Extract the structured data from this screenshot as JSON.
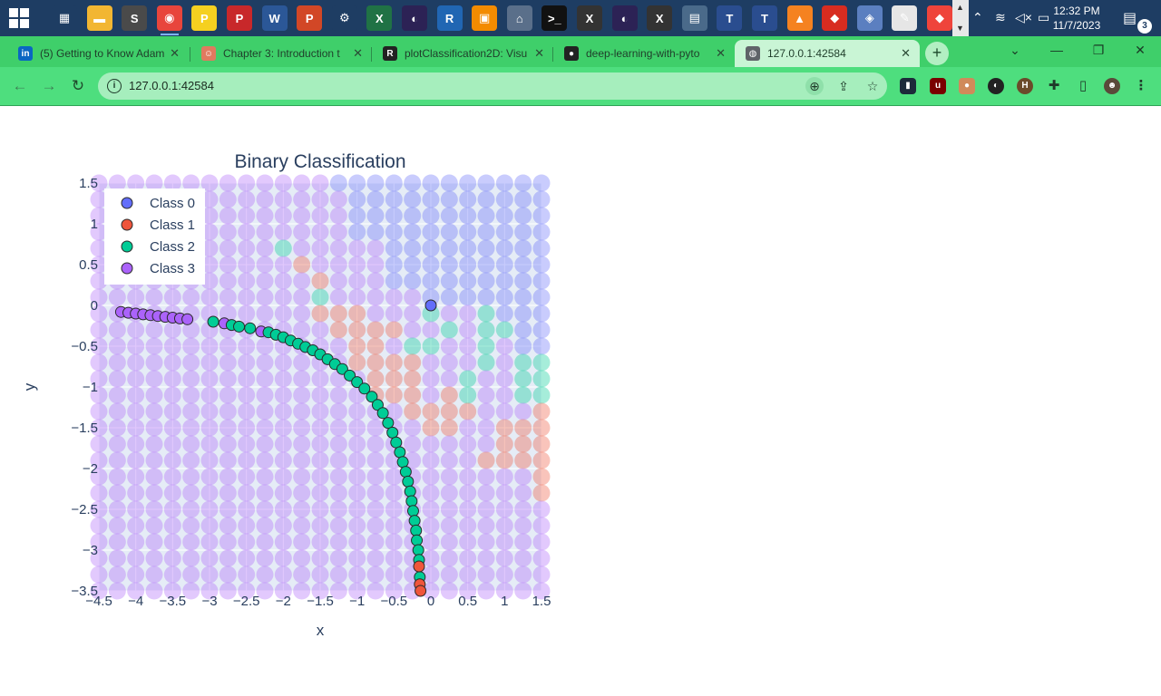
{
  "taskbar": {
    "icons": [
      {
        "name": "task-view-icon",
        "color": "#1e3d63",
        "glyph": "▦"
      },
      {
        "name": "file-explorer-icon",
        "color": "#f2b632",
        "glyph": "▬"
      },
      {
        "name": "sublime-text-icon",
        "color": "#4a4a4a",
        "glyph": "S"
      },
      {
        "name": "chrome-icon",
        "color": "#e8453c",
        "glyph": "◉"
      },
      {
        "name": "pdf-reader-icon",
        "color": "#f5d020",
        "glyph": "P"
      },
      {
        "name": "pdf-editor-icon",
        "color": "#c8282a",
        "glyph": "P"
      },
      {
        "name": "word-icon",
        "color": "#2b5797",
        "glyph": "W"
      },
      {
        "name": "powerpoint-icon",
        "color": "#d24726",
        "glyph": "P"
      },
      {
        "name": "settings-gear-icon",
        "color": "#1e3d63",
        "glyph": "⚙"
      },
      {
        "name": "excel-icon",
        "color": "#207245",
        "glyph": "X"
      },
      {
        "name": "eclipse-icon",
        "color": "#2c2255",
        "glyph": "◐"
      },
      {
        "name": "r-project-icon",
        "color": "#2166b3",
        "glyph": "R"
      },
      {
        "name": "vmware-icon",
        "color": "#f38b00",
        "glyph": "▣"
      },
      {
        "name": "network-tool-icon",
        "color": "#5a6f8a",
        "glyph": "⌂"
      },
      {
        "name": "terminal-icon",
        "color": "#111111",
        "glyph": ">_"
      },
      {
        "name": "xming-icon",
        "color": "#333333",
        "glyph": "X"
      },
      {
        "name": "eclipse-2-icon",
        "color": "#2c2255",
        "glyph": "◐"
      },
      {
        "name": "xming-2-icon",
        "color": "#333333",
        "glyph": "X"
      },
      {
        "name": "remote-desktop-icon",
        "color": "#4a6a8a",
        "glyph": "▤"
      },
      {
        "name": "texstudio-icon",
        "color": "#2a4d8f",
        "glyph": "T"
      },
      {
        "name": "texstudio-2-icon",
        "color": "#2a4d8f",
        "glyph": "T"
      },
      {
        "name": "vlc-icon",
        "color": "#f58220",
        "glyph": "▲"
      },
      {
        "name": "redis-icon",
        "color": "#d82c20",
        "glyph": "◆"
      },
      {
        "name": "shield-app-icon",
        "color": "#5b7fc0",
        "glyph": "◈"
      },
      {
        "name": "paint-icon",
        "color": "#e6e6e6",
        "glyph": "✎"
      },
      {
        "name": "anydesk-icon",
        "color": "#ef443b",
        "glyph": "◆"
      }
    ],
    "clock_time": "12:32 PM",
    "clock_date": "11/7/2023",
    "notification_count": "3"
  },
  "browser": {
    "tabs": [
      {
        "title": "(5) Getting to Know Adam",
        "favicon": "in",
        "favicon_color": "#0a66c2"
      },
      {
        "title": "Chapter 3: Introduction t",
        "favicon": "☺",
        "favicon_color": "#e07a5f"
      },
      {
        "title": "plotClassification2D: Visu",
        "favicon": "R",
        "favicon_color": "#222222"
      },
      {
        "title": "deep-learning-with-pyto",
        "favicon": "●",
        "favicon_color": "#222222"
      },
      {
        "title": "127.0.0.1:42584",
        "favicon": "◍",
        "favicon_color": "#5f6368"
      }
    ],
    "url": "127.0.0.1:42584"
  },
  "chart_data": {
    "type": "scatter",
    "title": "Binary Classification",
    "xlabel": "x",
    "ylabel": "y",
    "xlim": [
      -4.5,
      1.5
    ],
    "ylim": [
      -3.5,
      1.5
    ],
    "x_ticks": [
      "−4.5",
      "−4",
      "−3.5",
      "−3",
      "−2.5",
      "−2",
      "−1.5",
      "−1",
      "−0.5",
      "0",
      "0.5",
      "1",
      "1.5"
    ],
    "y_ticks": [
      "1.5",
      "1",
      "0.5",
      "0",
      "−0.5",
      "−1",
      "−1.5",
      "−2",
      "−2.5",
      "−3",
      "−3.5"
    ],
    "legend_position": "top-left",
    "classes": [
      {
        "name": "Class 0",
        "color": "#636efa"
      },
      {
        "name": "Class 1",
        "color": "#ef553b"
      },
      {
        "name": "Class 2",
        "color": "#00cc96"
      },
      {
        "name": "Class 3",
        "color": "#ab63fa"
      }
    ],
    "grid": {
      "x_start": -4.5,
      "x_step": 0.25,
      "x_count": 25,
      "y_start": 1.5,
      "y_step": -0.2,
      "y_count": 26,
      "rows": [
        "3333333333333000000000000",
        "3333333333333300000000000",
        "3333333333333300000000000",
        "3333333333333300000000000",
        "3333333333233333000000000",
        "3333333333313333000000000",
        "3333333333331333000000000",
        "3333333333332333330000000",
        "3333333333331113332332000",
        "3333333333333111133232200",
        "3333333333333311322332300",
        "3333333333333311113332322",
        "3333333333333331113323322",
        "3333333333333331113123322",
        "3333333333333333311113331",
        "3333333333333333331133111",
        "3333333333333333333333111",
        "3333333333333333333331111",
        "3333333333333333333333331",
        "3333333333333333333333331",
        "3333333333333333333333333",
        "3333333333333333333333333",
        "3333333333333333333333333",
        "3333333333333333333333333",
        "3333333333333333333333333",
        "3333333333333333333333333"
      ]
    },
    "series": [
      {
        "name": "Class 0",
        "points": [
          [
            0.0,
            0.0
          ]
        ]
      },
      {
        "name": "Class 3",
        "points": [
          [
            -4.2,
            -0.08
          ],
          [
            -4.1,
            -0.09
          ],
          [
            -4.0,
            -0.1
          ],
          [
            -3.9,
            -0.11
          ],
          [
            -3.8,
            -0.12
          ],
          [
            -3.7,
            -0.13
          ],
          [
            -3.6,
            -0.14
          ],
          [
            -3.5,
            -0.15
          ],
          [
            -3.4,
            -0.16
          ],
          [
            -3.3,
            -0.17
          ],
          [
            -2.8,
            -0.22
          ],
          [
            -2.3,
            -0.32
          ]
        ]
      },
      {
        "name": "Class 2",
        "points": [
          [
            -2.95,
            -0.2
          ],
          [
            -2.7,
            -0.24
          ],
          [
            -2.6,
            -0.26
          ],
          [
            -2.45,
            -0.28
          ],
          [
            -2.2,
            -0.33
          ],
          [
            -2.1,
            -0.36
          ],
          [
            -2.0,
            -0.39
          ],
          [
            -1.9,
            -0.43
          ],
          [
            -1.8,
            -0.47
          ],
          [
            -1.7,
            -0.51
          ],
          [
            -1.6,
            -0.55
          ],
          [
            -1.5,
            -0.6
          ],
          [
            -1.4,
            -0.66
          ],
          [
            -1.3,
            -0.72
          ],
          [
            -1.2,
            -0.78
          ],
          [
            -1.1,
            -0.86
          ],
          [
            -1.0,
            -0.94
          ],
          [
            -0.9,
            -1.02
          ],
          [
            -0.8,
            -1.12
          ],
          [
            -0.72,
            -1.22
          ],
          [
            -0.65,
            -1.32
          ],
          [
            -0.58,
            -1.44
          ],
          [
            -0.52,
            -1.56
          ],
          [
            -0.47,
            -1.68
          ],
          [
            -0.42,
            -1.8
          ],
          [
            -0.38,
            -1.92
          ],
          [
            -0.34,
            -2.04
          ],
          [
            -0.31,
            -2.16
          ],
          [
            -0.28,
            -2.28
          ],
          [
            -0.26,
            -2.4
          ],
          [
            -0.24,
            -2.52
          ],
          [
            -0.22,
            -2.64
          ],
          [
            -0.2,
            -2.76
          ],
          [
            -0.19,
            -2.88
          ],
          [
            -0.17,
            -3.0
          ],
          [
            -0.16,
            -3.12
          ],
          [
            -0.15,
            -3.33
          ]
        ]
      },
      {
        "name": "Class 1",
        "points": [
          [
            -0.16,
            -3.2
          ],
          [
            -0.15,
            -3.42
          ],
          [
            -0.14,
            -3.5
          ]
        ]
      }
    ]
  }
}
